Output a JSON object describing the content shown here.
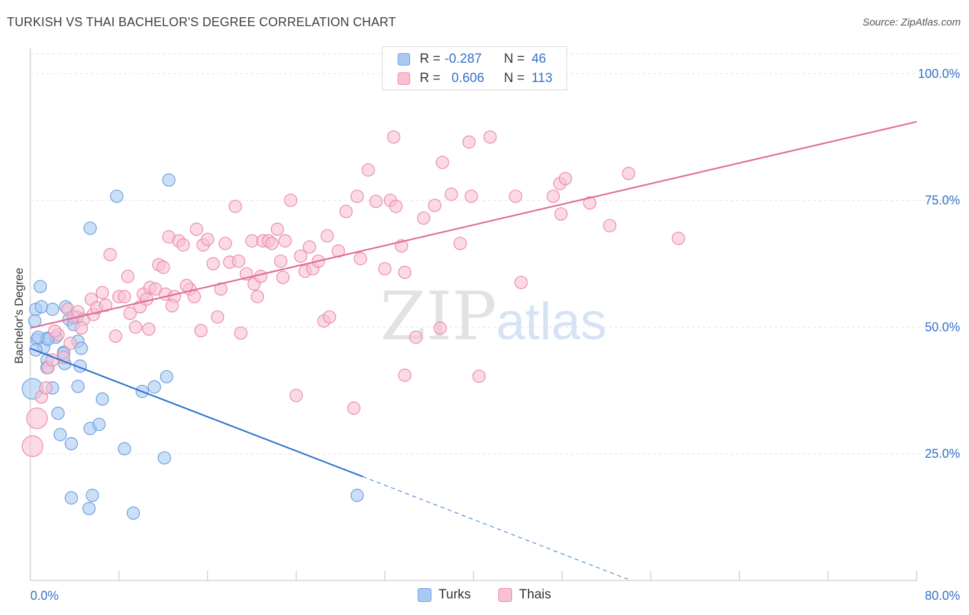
{
  "header": {
    "title": "TURKISH VS THAI BACHELOR'S DEGREE CORRELATION CHART",
    "source": "Source: ZipAtlas.com"
  },
  "watermark": {
    "zip": "ZIP",
    "atlas": "atlas"
  },
  "legend": {
    "rows": [
      {
        "r_label": "R =",
        "r_value": "-0.287",
        "n_label": "N =",
        "n_value": "46",
        "color": "#a9c9f1",
        "border": "#6d9fe0"
      },
      {
        "r_label": "R =",
        "r_value": "0.606",
        "n_label": "N =",
        "n_value": "113",
        "color": "#f8c1d2",
        "border": "#e98aaa"
      }
    ],
    "bottom": [
      {
        "label": "Turks",
        "color": "#a9c9f1",
        "border": "#6d9fe0"
      },
      {
        "label": "Thais",
        "color": "#f8c1d2",
        "border": "#e98aaa"
      }
    ]
  },
  "chart_data": {
    "type": "scatter",
    "title": "TURKISH VS THAI BACHELOR'S DEGREE CORRELATION CHART",
    "ylabel": "Bachelor's Degree",
    "xlabel": "",
    "xlim": [
      0,
      80
    ],
    "ylim": [
      0,
      105
    ],
    "x_tick_labels": [
      "0.0%",
      "80.0%"
    ],
    "y_ticks": [
      25,
      50,
      75,
      100
    ],
    "y_tick_labels": [
      "25.0%",
      "50.0%",
      "75.0%",
      "100.0%"
    ],
    "grid": true,
    "legend_position": "top-center",
    "series": [
      {
        "name": "Turks",
        "color": "#6d9fe0",
        "fill": "#a9c9f1",
        "trend_color": "#2f74d0",
        "trend": {
          "x0": 0,
          "y0": 45.8,
          "x1": 30,
          "y1": 20.5,
          "dash_to_x": 56,
          "dash_to_y": -1.5
        },
        "points": [
          [
            0.5,
            53.5
          ],
          [
            0.6,
            47.5
          ],
          [
            0.9,
            58
          ],
          [
            1.0,
            54
          ],
          [
            1.2,
            46
          ],
          [
            1.5,
            47.8
          ],
          [
            1.5,
            43.5
          ],
          [
            1.5,
            42
          ],
          [
            2.0,
            53.5
          ],
          [
            2.0,
            38
          ],
          [
            2.3,
            48
          ],
          [
            2.5,
            33
          ],
          [
            2.7,
            28.8
          ],
          [
            3.0,
            45
          ],
          [
            3.1,
            42.8
          ],
          [
            3.2,
            54
          ],
          [
            3.5,
            51.5
          ],
          [
            3.7,
            27
          ],
          [
            3.7,
            16.3
          ],
          [
            3.9,
            50.5
          ],
          [
            4.2,
            52
          ],
          [
            4.3,
            38.3
          ],
          [
            4.3,
            47.2
          ],
          [
            4.5,
            42.3
          ],
          [
            4.6,
            45.8
          ],
          [
            5.3,
            14.2
          ],
          [
            5.4,
            30
          ],
          [
            5.6,
            16.8
          ],
          [
            5.4,
            69.5
          ],
          [
            6.2,
            30.8
          ],
          [
            6.5,
            35.8
          ],
          [
            7.8,
            75.8
          ],
          [
            8.5,
            26
          ],
          [
            9.3,
            13.3
          ],
          [
            10.1,
            37.3
          ],
          [
            11.2,
            38.2
          ],
          [
            12.1,
            24.2
          ],
          [
            12.3,
            40.2
          ],
          [
            12.5,
            79
          ],
          [
            29.5,
            16.8
          ],
          [
            0.2,
            37.8
          ],
          [
            3.0,
            44.8
          ],
          [
            1.6,
            47.6
          ],
          [
            0.5,
            45.5
          ],
          [
            0.4,
            51.2
          ],
          [
            0.7,
            48
          ]
        ]
      },
      {
        "name": "Thais",
        "color": "#e98aaa",
        "fill": "#f8c1d2",
        "trend_color": "#e06b96",
        "trend": {
          "x0": 0,
          "y0": 49.8,
          "x1": 80,
          "y1": 90.5
        },
        "points": [
          [
            0.2,
            26.5
          ],
          [
            0.6,
            32
          ],
          [
            1.0,
            36.2
          ],
          [
            1.4,
            38
          ],
          [
            1.6,
            42
          ],
          [
            2.0,
            43.5
          ],
          [
            2.5,
            48.5
          ],
          [
            3.0,
            44
          ],
          [
            3.4,
            53.5
          ],
          [
            3.9,
            52
          ],
          [
            4.3,
            53
          ],
          [
            4.8,
            51.5
          ],
          [
            5.5,
            55.5
          ],
          [
            5.7,
            52.5
          ],
          [
            6.0,
            53.8
          ],
          [
            6.5,
            56.8
          ],
          [
            7.2,
            64.3
          ],
          [
            7.7,
            48.2
          ],
          [
            8.0,
            56
          ],
          [
            8.5,
            56
          ],
          [
            8.8,
            60
          ],
          [
            9.5,
            50
          ],
          [
            9.9,
            54
          ],
          [
            10.2,
            56.5
          ],
          [
            10.5,
            55.5
          ],
          [
            10.8,
            57.8
          ],
          [
            11.3,
            57.5
          ],
          [
            11.6,
            62.3
          ],
          [
            12.0,
            61.8
          ],
          [
            12.2,
            56.5
          ],
          [
            12.5,
            67.8
          ],
          [
            13.0,
            56
          ],
          [
            13.4,
            67
          ],
          [
            13.8,
            66.2
          ],
          [
            14.4,
            57.5
          ],
          [
            14.8,
            56
          ],
          [
            15.0,
            69.3
          ],
          [
            15.4,
            49.3
          ],
          [
            15.6,
            66.2
          ],
          [
            16.0,
            67.3
          ],
          [
            16.5,
            62.5
          ],
          [
            16.9,
            52
          ],
          [
            17.2,
            57.5
          ],
          [
            17.6,
            66.5
          ],
          [
            18.0,
            62.8
          ],
          [
            18.5,
            73.8
          ],
          [
            18.8,
            63
          ],
          [
            19.0,
            48.8
          ],
          [
            19.5,
            60.5
          ],
          [
            20.0,
            67
          ],
          [
            20.2,
            58.5
          ],
          [
            20.5,
            56
          ],
          [
            20.8,
            60
          ],
          [
            21.0,
            67
          ],
          [
            21.5,
            67
          ],
          [
            21.8,
            66.5
          ],
          [
            22.3,
            69.3
          ],
          [
            22.6,
            63
          ],
          [
            22.8,
            59.8
          ],
          [
            23.0,
            67
          ],
          [
            23.5,
            75
          ],
          [
            24.0,
            36.5
          ],
          [
            24.4,
            64
          ],
          [
            24.8,
            61
          ],
          [
            25.2,
            65.8
          ],
          [
            25.5,
            61.5
          ],
          [
            26.0,
            63
          ],
          [
            26.5,
            51.2
          ],
          [
            26.8,
            68
          ],
          [
            27.0,
            52
          ],
          [
            27.8,
            65
          ],
          [
            28.5,
            72.8
          ],
          [
            29.2,
            34
          ],
          [
            29.5,
            75.8
          ],
          [
            29.8,
            63.5
          ],
          [
            30.5,
            81
          ],
          [
            31.2,
            74.8
          ],
          [
            32.0,
            61.5
          ],
          [
            32.5,
            75
          ],
          [
            33.0,
            73.8
          ],
          [
            33.5,
            66
          ],
          [
            33.8,
            60.8
          ],
          [
            32.8,
            87.5
          ],
          [
            33.8,
            40.5
          ],
          [
            34.8,
            48
          ],
          [
            35.5,
            71.5
          ],
          [
            36.5,
            74
          ],
          [
            37.0,
            49.8
          ],
          [
            37.2,
            82.5
          ],
          [
            38.0,
            76.2
          ],
          [
            38.8,
            66.5
          ],
          [
            39.6,
            86.5
          ],
          [
            39.8,
            75.8
          ],
          [
            40.5,
            40.3
          ],
          [
            41.5,
            87.5
          ],
          [
            43.8,
            75.8
          ],
          [
            44.3,
            58.8
          ],
          [
            47.2,
            75.8
          ],
          [
            47.8,
            78.3
          ],
          [
            48.3,
            79.3
          ],
          [
            47.9,
            72.3
          ],
          [
            50.5,
            74.5
          ],
          [
            52.3,
            70
          ],
          [
            54.0,
            80.3
          ],
          [
            58.5,
            67.5
          ],
          [
            4.6,
            49.8
          ],
          [
            6.8,
            54.3
          ],
          [
            2.2,
            49.2
          ],
          [
            3.6,
            46.8
          ],
          [
            9.0,
            52.7
          ],
          [
            12.8,
            54.2
          ],
          [
            10.7,
            49.6
          ],
          [
            14.1,
            58.2
          ]
        ]
      }
    ]
  }
}
